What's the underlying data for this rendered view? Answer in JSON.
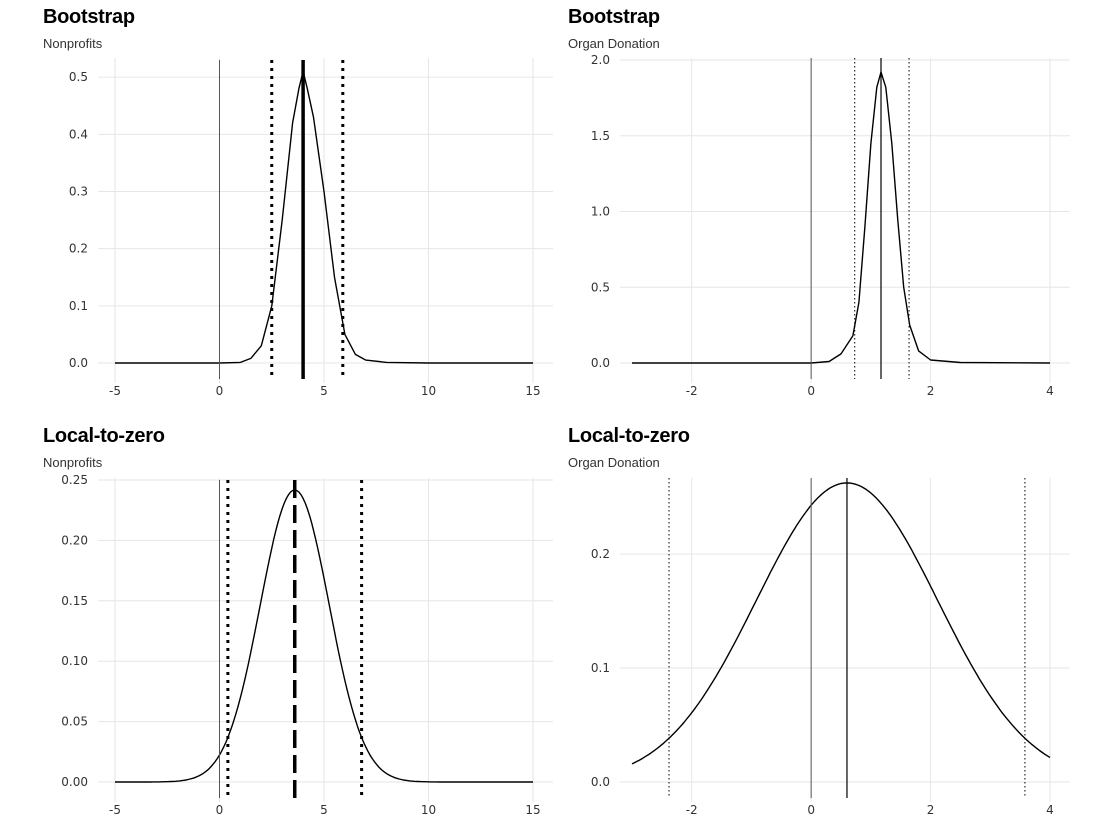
{
  "chart_data": [
    {
      "type": "line",
      "title": "Bootstrap",
      "subtitle": "Nonprofits",
      "xlim": [
        -5,
        15
      ],
      "ylim": [
        0,
        0.53
      ],
      "xticks": [
        -5,
        0,
        5,
        10,
        15
      ],
      "xtick_labels": [
        "-5",
        "0",
        "5",
        "10",
        "15"
      ],
      "yticks": [
        0,
        0.1,
        0.2,
        0.3,
        0.4,
        0.5
      ],
      "ytick_labels": [
        "0.0",
        "0.1",
        "0.2",
        "0.3",
        "0.4",
        "0.5"
      ],
      "grid": true,
      "series": [
        {
          "x": [
            -5,
            0,
            1,
            1.5,
            2,
            2.5,
            3,
            3.5,
            3.8,
            4.0,
            4.2,
            4.5,
            5,
            5.5,
            6,
            6.5,
            7,
            8,
            10,
            15
          ],
          "y": [
            0,
            0,
            0.001,
            0.008,
            0.03,
            0.1,
            0.25,
            0.42,
            0.48,
            0.51,
            0.48,
            0.43,
            0.3,
            0.15,
            0.05,
            0.015,
            0.005,
            0.001,
            0,
            0
          ]
        }
      ],
      "vlines": [
        {
          "x": 0,
          "style": "solid",
          "color": "#555555",
          "width": 1
        },
        {
          "x": 2.5,
          "style": "dotted",
          "color": "#000000",
          "width": 3
        },
        {
          "x": 4.0,
          "style": "solid",
          "color": "#000000",
          "width": 3.5
        },
        {
          "x": 5.9,
          "style": "dotted",
          "color": "#000000",
          "width": 3
        }
      ]
    },
    {
      "type": "line",
      "title": "Bootstrap",
      "subtitle": "Organ Donation",
      "xlim": [
        -3,
        4
      ],
      "ylim": [
        0,
        2.0
      ],
      "xticks": [
        -2,
        0,
        2,
        4
      ],
      "xtick_labels": [
        "-2",
        "0",
        "2",
        "4"
      ],
      "yticks": [
        0,
        0.5,
        1.0,
        1.5,
        2.0
      ],
      "ytick_labels": [
        "0.0",
        "0.5",
        "1.0",
        "1.5",
        "2.0"
      ],
      "grid": true,
      "series": [
        {
          "x": [
            -3,
            0,
            0.3,
            0.5,
            0.7,
            0.8,
            0.9,
            1.0,
            1.1,
            1.17,
            1.25,
            1.35,
            1.45,
            1.55,
            1.65,
            1.8,
            2.0,
            2.5,
            4
          ],
          "y": [
            0,
            0,
            0.01,
            0.06,
            0.18,
            0.4,
            0.9,
            1.45,
            1.82,
            1.92,
            1.82,
            1.45,
            0.95,
            0.5,
            0.25,
            0.08,
            0.02,
            0.003,
            0
          ]
        }
      ],
      "vlines": [
        {
          "x": 0,
          "style": "solid",
          "color": "#555555",
          "width": 1
        },
        {
          "x": 0.73,
          "style": "dotted",
          "color": "#000000",
          "width": 1
        },
        {
          "x": 1.17,
          "style": "solid",
          "color": "#000000",
          "width": 1.2
        },
        {
          "x": 1.64,
          "style": "dotted",
          "color": "#000000",
          "width": 1
        }
      ]
    },
    {
      "type": "line",
      "title": "Local-to-zero",
      "subtitle": "Nonprofits",
      "xlim": [
        -5,
        15
      ],
      "ylim": [
        0,
        0.25
      ],
      "xticks": [
        -5,
        0,
        5,
        10,
        15
      ],
      "xtick_labels": [
        "-5",
        "0",
        "5",
        "10",
        "15"
      ],
      "yticks": [
        0,
        0.05,
        0.1,
        0.15,
        0.2,
        0.25
      ],
      "ytick_labels": [
        "0.00",
        "0.05",
        "0.10",
        "0.15",
        "0.20",
        "0.25"
      ],
      "grid": true,
      "series": [
        {
          "curve": "normal",
          "mean": 3.6,
          "sd": 1.65,
          "from": -5,
          "to": 15
        }
      ],
      "vlines": [
        {
          "x": 0,
          "style": "solid",
          "color": "#555555",
          "width": 1
        },
        {
          "x": 0.4,
          "style": "dotted",
          "color": "#000000",
          "width": 3
        },
        {
          "x": 3.6,
          "style": "dashed",
          "color": "#000000",
          "width": 3.5
        },
        {
          "x": 6.8,
          "style": "dotted",
          "color": "#000000",
          "width": 3
        }
      ]
    },
    {
      "type": "line",
      "title": "Local-to-zero",
      "subtitle": "Organ Donation",
      "xlim": [
        -3,
        4
      ],
      "ylim": [
        0,
        0.265
      ],
      "xticks": [
        -2,
        0,
        2,
        4
      ],
      "xtick_labels": [
        "-2",
        "0",
        "2",
        "4"
      ],
      "yticks": [
        0,
        0.1,
        0.2
      ],
      "ytick_labels": [
        "0.0",
        "0.1",
        "0.2"
      ],
      "grid": true,
      "series": [
        {
          "curve": "normal",
          "mean": 0.6,
          "sd": 1.52,
          "from": -3,
          "to": 4
        }
      ],
      "vlines": [
        {
          "x": 0,
          "style": "solid",
          "color": "#555555",
          "width": 1
        },
        {
          "x": -2.38,
          "style": "dotted",
          "color": "#000000",
          "width": 1
        },
        {
          "x": 0.6,
          "style": "solid",
          "color": "#000000",
          "width": 1.2
        },
        {
          "x": 3.58,
          "style": "dotted",
          "color": "#000000",
          "width": 1
        }
      ]
    }
  ]
}
